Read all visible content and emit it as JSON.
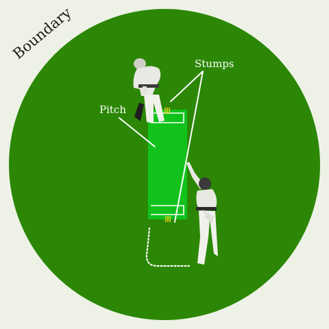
{
  "diagram": {
    "labels": {
      "boundary": "Boundary",
      "pitch": "Pitch",
      "stumps": "Stumps"
    },
    "colors": {
      "background": "#eef2e6",
      "field": "#2b8705",
      "pitch": "#11c21c",
      "crease_lines": "#ffffff",
      "stumps": "#e8d21a",
      "label_text": "#ffffff",
      "boundary_text": "#1a1a1a",
      "players": "#e9e9e4"
    },
    "elements": {
      "batsman": "batsman-figure",
      "bowler": "bowler-figure",
      "ball_path": "dotted-run-path"
    }
  }
}
